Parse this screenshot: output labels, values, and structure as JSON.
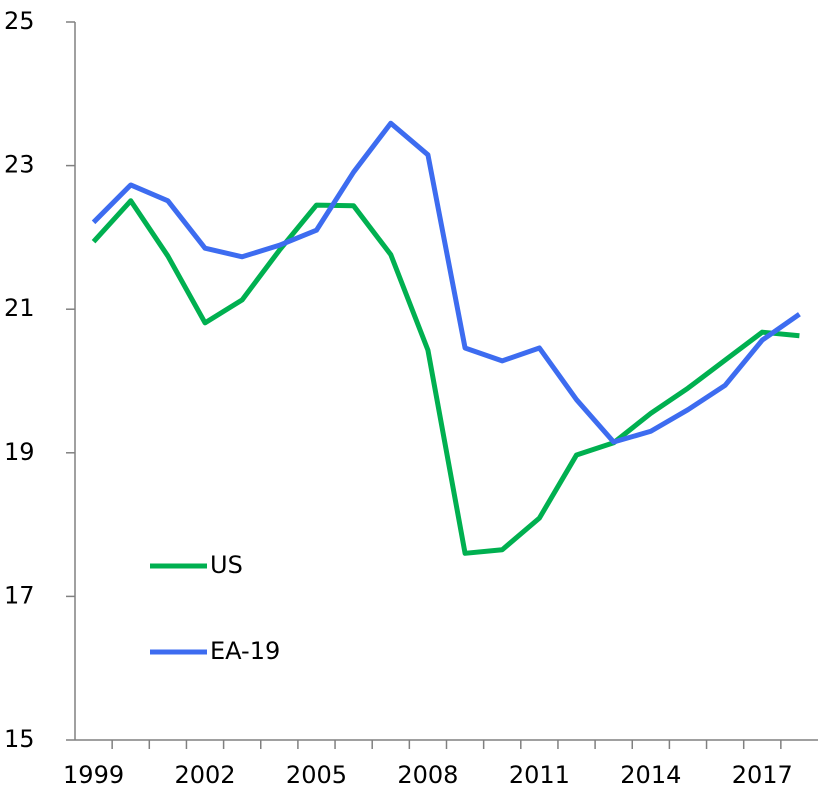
{
  "chart_data": {
    "type": "line",
    "categories": [
      "1999",
      null,
      null,
      "2002",
      null,
      null,
      "2005",
      null,
      null,
      "2008",
      null,
      null,
      "2011",
      null,
      null,
      "2014",
      null,
      null,
      "2017",
      null
    ],
    "series": [
      {
        "name": "US",
        "color": "#00b050",
        "values": [
          21.94,
          22.51,
          21.74,
          20.81,
          21.13,
          21.82,
          22.45,
          22.44,
          21.76,
          20.43,
          17.6,
          17.65,
          18.09,
          18.97,
          19.14,
          19.55,
          19.9,
          20.29,
          20.68,
          20.63
        ]
      },
      {
        "name": "EA-19",
        "color": "#3d6cf0",
        "values": [
          22.21,
          22.73,
          22.51,
          21.85,
          21.73,
          21.89,
          22.1,
          22.91,
          23.59,
          23.15,
          20.46,
          20.28,
          20.46,
          19.74,
          19.15,
          19.3,
          19.6,
          19.94,
          20.57,
          20.93
        ]
      }
    ],
    "ylim": [
      15,
      25
    ],
    "yticks": [
      15,
      17,
      19,
      21,
      23,
      25
    ],
    "grid": false,
    "legend": "lower left"
  }
}
